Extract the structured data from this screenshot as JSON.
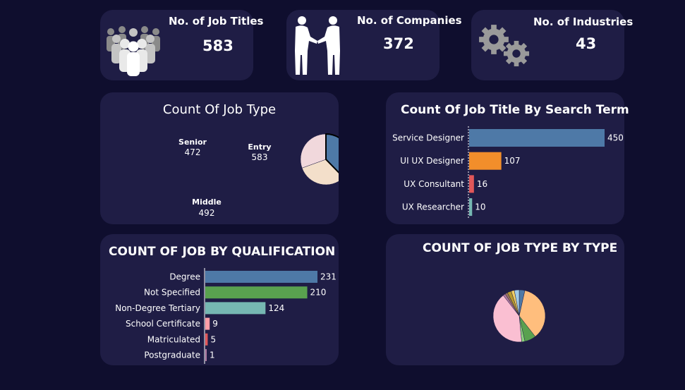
{
  "kpis": [
    {
      "title": "No. of Job Titles",
      "value": "583",
      "icon": "people-group-icon"
    },
    {
      "title": "No. of Companies",
      "value": "372",
      "icon": "handshake-icon"
    },
    {
      "title": "No. of Industries",
      "value": "43",
      "icon": "gears-icon"
    }
  ],
  "colors": {
    "background": "#0f0e2e",
    "card": "#1f1d45",
    "blue": "#4e79a7",
    "orange": "#f28e2b",
    "red": "#e15759",
    "teal": "#76b7b2",
    "green": "#59a14f",
    "pink": "#ff9da7"
  },
  "chart_data": [
    {
      "id": "job_type_pie",
      "type": "pie",
      "title": "Count Of Job Type",
      "slices": [
        {
          "label": "Entry",
          "value": 583,
          "color": "#4e79a7"
        },
        {
          "label": "Middle",
          "value": 492,
          "color": "#f3dfca"
        },
        {
          "label": "Senior",
          "value": 472,
          "color": "#f1d8dc"
        }
      ]
    },
    {
      "id": "search_term_bar",
      "type": "bar",
      "orientation": "horizontal",
      "title": "Count Of Job Title By Search Term",
      "categories": [
        "Service Designer",
        "UI UX Designer",
        "UX Consultant",
        "UX Researcher"
      ],
      "values": [
        450,
        107,
        16,
        10
      ],
      "colors": [
        "#4e79a7",
        "#f28e2b",
        "#e15759",
        "#76b7b2"
      ]
    },
    {
      "id": "qualification_bar",
      "type": "bar",
      "orientation": "horizontal",
      "title": "COUNT OF JOB BY QUALIFICATION",
      "categories": [
        "Degree",
        "Not Specified",
        "Non-Degree Tertiary",
        "School Certificate",
        "Matriculated",
        "Postgraduate"
      ],
      "values": [
        231,
        210,
        124,
        9,
        5,
        1
      ],
      "colors": [
        "#4e79a7",
        "#59a14f",
        "#76b7b2",
        "#ff9da7",
        "#e15759",
        "#b07aa1"
      ]
    },
    {
      "id": "type_pie",
      "type": "pie",
      "title": "COUNT OF JOB TYPE BY TYPE",
      "slices": [
        {
          "value": 3.5,
          "color": "#4e79a7"
        },
        {
          "value": 36,
          "color": "#ffbe7d"
        },
        {
          "value": 7,
          "color": "#59a14f"
        },
        {
          "value": 2,
          "color": "#8cd17d"
        },
        {
          "value": 41,
          "color": "#fabfd2"
        },
        {
          "value": 1.5,
          "color": "#b07aa1"
        },
        {
          "value": 1.5,
          "color": "#9d7660"
        },
        {
          "value": 2.5,
          "color": "#b6992d"
        },
        {
          "value": 2,
          "color": "#f1ce63"
        },
        {
          "value": 3,
          "color": "#a0cbe8"
        }
      ]
    }
  ]
}
